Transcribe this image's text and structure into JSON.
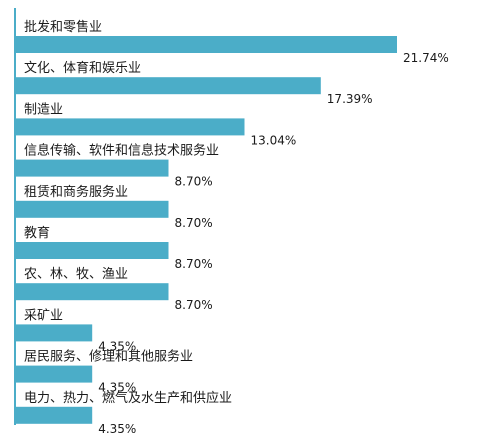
{
  "chart_data": {
    "type": "bar",
    "orientation": "horizontal",
    "categories": [
      "批发和零售业",
      "文化、体育和娱乐业",
      "制造业",
      "信息传输、软件和信息技术服务业",
      "租赁和商务服务业",
      "教育",
      "农、林、牧、渔业",
      "采矿业",
      "居民服务、修理和其他服务业",
      "电力、热力、燃气及水生产和供应业"
    ],
    "values": [
      21.74,
      17.39,
      13.04,
      8.7,
      8.7,
      8.7,
      8.7,
      4.35,
      4.35,
      4.35
    ],
    "value_labels": [
      "21.74%",
      "17.39%",
      "13.04%",
      "8.70%",
      "8.70%",
      "8.70%",
      "8.70%",
      "4.35%",
      "4.35%",
      "4.35%"
    ],
    "xlim": [
      0,
      21.74
    ],
    "grid": false,
    "legend": "none",
    "colors": {
      "bar": "#4badc8",
      "axis": "#4badc8",
      "text": "#1a1a1a"
    }
  }
}
